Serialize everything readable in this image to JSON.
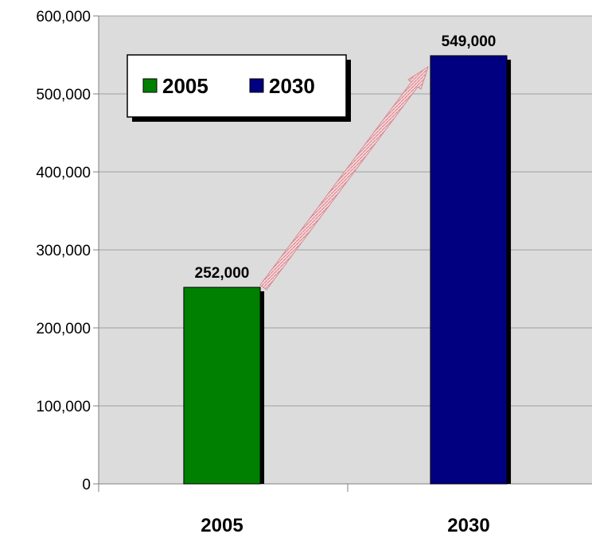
{
  "chart_data": {
    "type": "bar",
    "categories": [
      "2005",
      "2030"
    ],
    "series": [
      {
        "name": "2005",
        "values": [
          252000,
          null
        ],
        "color": "#008000"
      },
      {
        "name": "2030",
        "values": [
          null,
          549000
        ],
        "color": "#000080"
      }
    ],
    "data_labels": [
      "252,000",
      "549,000"
    ],
    "yticks": [
      "0",
      "100,000",
      "200,000",
      "300,000",
      "400,000",
      "500,000",
      "600,000"
    ],
    "ylim": [
      0,
      600000
    ],
    "title": "",
    "xlabel": "",
    "ylabel": "",
    "grid": true,
    "legend_position": "top-left",
    "plot_background": "#dcdcdc",
    "gridline_color": "#a0a0a0",
    "annotation": "arrow from 2005 bar to 2030 bar",
    "arrow_color": "#e8a0a8"
  }
}
